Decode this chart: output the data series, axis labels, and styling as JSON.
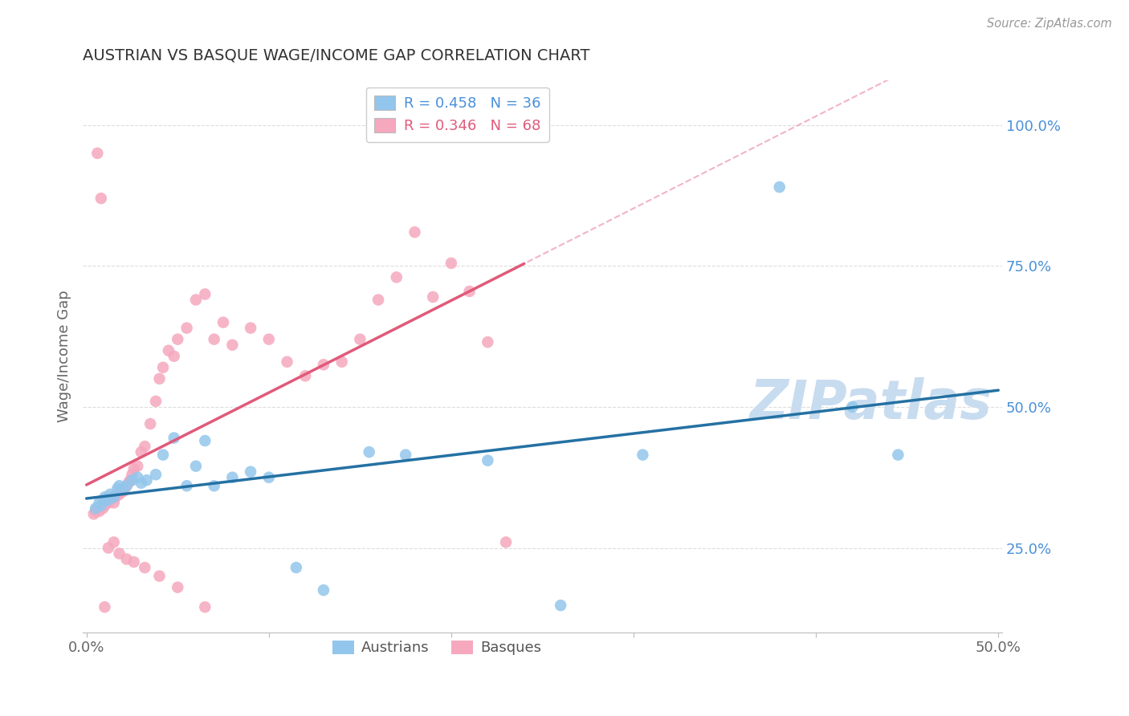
{
  "title": "AUSTRIAN VS BASQUE WAGE/INCOME GAP CORRELATION CHART",
  "source": "Source: ZipAtlas.com",
  "ylabel": "Wage/Income Gap",
  "xlim": [
    -0.002,
    0.502
  ],
  "ylim": [
    0.1,
    1.08
  ],
  "ytick_vals": [
    0.25,
    0.5,
    0.75,
    1.0
  ],
  "ytick_labels": [
    "25.0%",
    "50.0%",
    "75.0%",
    "100.0%"
  ],
  "xtick_vals": [
    0.0,
    0.1,
    0.2,
    0.3,
    0.4,
    0.5
  ],
  "xtick_labels": [
    "0.0%",
    "",
    "",
    "",
    "",
    "50.0%"
  ],
  "R_austrians": "0.458",
  "N_austrians": "36",
  "R_basques": "0.346",
  "N_basques": "68",
  "label_austrians": "Austrians",
  "label_basques": "Basques",
  "color_austrians_fill": "#93C6EC",
  "color_basques_fill": "#F5A8BE",
  "color_austrians_line": "#2471A3",
  "color_basques_line": "#E05A7A",
  "color_basques_dash": "#F0A0B8",
  "watermark_text": "ZIPatlas",
  "watermark_color": "#C8DCF0",
  "bg_color": "#FFFFFF",
  "grid_color": "#DDDDDD",
  "title_color": "#333333",
  "source_color": "#999999",
  "axis_label_color": "#666666",
  "tick_color_right": "#4A90D9",
  "tick_color_bottom": "#666666",
  "legend_edge_color": "#CCCCCC",
  "austrians_x": [
    0.005,
    0.007,
    0.008,
    0.01,
    0.01,
    0.012,
    0.013,
    0.015,
    0.017,
    0.018,
    0.02,
    0.022,
    0.025,
    0.028,
    0.03,
    0.033,
    0.038,
    0.042,
    0.048,
    0.055,
    0.06,
    0.065,
    0.07,
    0.08,
    0.09,
    0.1,
    0.115,
    0.13,
    0.155,
    0.175,
    0.22,
    0.26,
    0.305,
    0.38,
    0.42,
    0.445
  ],
  "austrians_y": [
    0.32,
    0.33,
    0.325,
    0.335,
    0.34,
    0.335,
    0.345,
    0.34,
    0.355,
    0.36,
    0.355,
    0.36,
    0.37,
    0.375,
    0.365,
    0.37,
    0.38,
    0.415,
    0.445,
    0.36,
    0.395,
    0.44,
    0.36,
    0.375,
    0.385,
    0.375,
    0.215,
    0.175,
    0.42,
    0.415,
    0.405,
    0.148,
    0.415,
    0.89,
    0.5,
    0.415
  ],
  "basques_x": [
    0.004,
    0.005,
    0.006,
    0.007,
    0.008,
    0.009,
    0.01,
    0.01,
    0.011,
    0.012,
    0.013,
    0.014,
    0.015,
    0.015,
    0.016,
    0.017,
    0.018,
    0.019,
    0.02,
    0.021,
    0.022,
    0.023,
    0.024,
    0.025,
    0.026,
    0.028,
    0.03,
    0.032,
    0.035,
    0.038,
    0.04,
    0.042,
    0.045,
    0.048,
    0.05,
    0.055,
    0.06,
    0.065,
    0.07,
    0.075,
    0.08,
    0.09,
    0.1,
    0.11,
    0.12,
    0.13,
    0.14,
    0.15,
    0.16,
    0.17,
    0.18,
    0.19,
    0.2,
    0.21,
    0.22,
    0.23,
    0.006,
    0.008,
    0.01,
    0.012,
    0.015,
    0.018,
    0.022,
    0.026,
    0.032,
    0.04,
    0.05,
    0.065
  ],
  "basques_y": [
    0.31,
    0.315,
    0.32,
    0.315,
    0.325,
    0.32,
    0.325,
    0.335,
    0.33,
    0.33,
    0.335,
    0.34,
    0.33,
    0.34,
    0.34,
    0.345,
    0.345,
    0.35,
    0.35,
    0.355,
    0.36,
    0.365,
    0.37,
    0.38,
    0.39,
    0.395,
    0.42,
    0.43,
    0.47,
    0.51,
    0.55,
    0.57,
    0.6,
    0.59,
    0.62,
    0.64,
    0.69,
    0.7,
    0.62,
    0.65,
    0.61,
    0.64,
    0.62,
    0.58,
    0.555,
    0.575,
    0.58,
    0.62,
    0.69,
    0.73,
    0.81,
    0.695,
    0.755,
    0.705,
    0.615,
    0.26,
    0.95,
    0.87,
    0.145,
    0.25,
    0.26,
    0.24,
    0.23,
    0.225,
    0.215,
    0.2,
    0.18,
    0.145
  ]
}
